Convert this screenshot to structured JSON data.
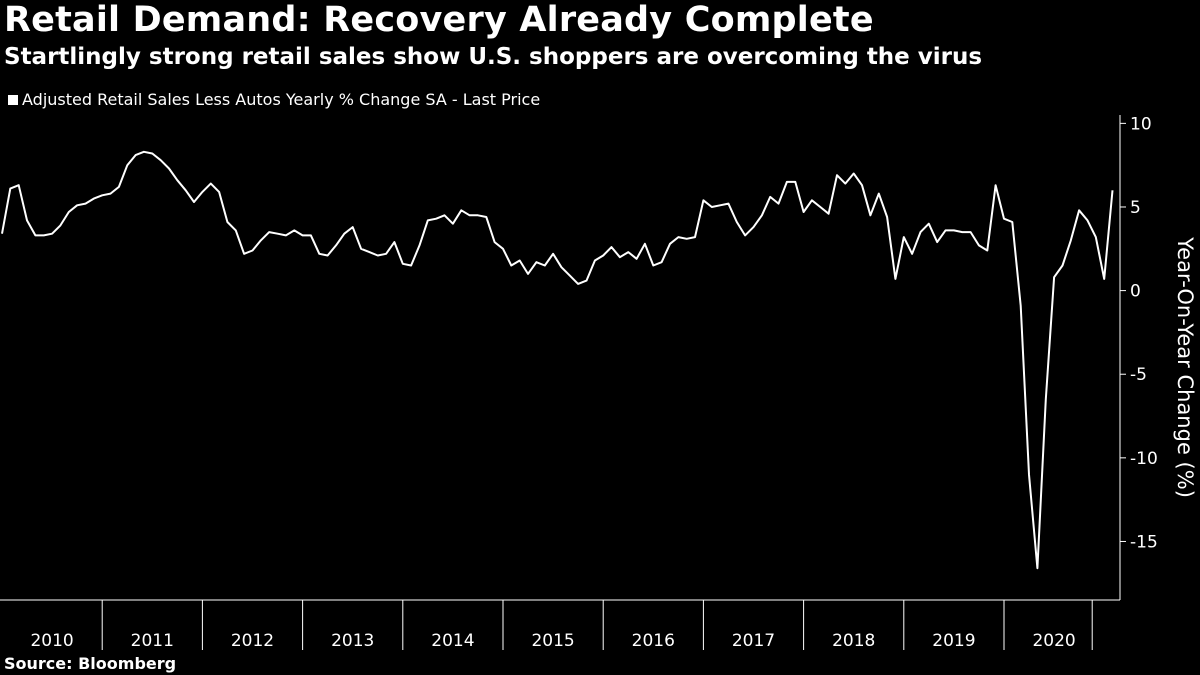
{
  "header": {
    "title": "Retail Demand: Recovery Already Complete",
    "subtitle": "Startlingly strong retail sales show U.S. shoppers are overcoming the virus"
  },
  "source": "Source: Bloomberg",
  "colors": {
    "background": "#000000",
    "line": "#ffffff",
    "text": "#ffffff"
  },
  "chart_data": {
    "type": "line",
    "title": "Retail Demand: Recovery Already Complete",
    "subtitle": "Startlingly strong retail sales show U.S. shoppers are overcoming the virus",
    "legend_position": "top-left",
    "grid": false,
    "ylabel": "Year-On-Year Change (%)",
    "xlabel": "",
    "ylim": [
      -18.5,
      10.5
    ],
    "yticks": [
      10,
      5,
      0,
      -5,
      -10,
      -15
    ],
    "x_tick_labels": [
      "2010",
      "2011",
      "2012",
      "2013",
      "2014",
      "2015",
      "2016",
      "2017",
      "2018",
      "2019",
      "2020"
    ],
    "x_start": "2010-01",
    "x_frequency": "monthly",
    "series": [
      {
        "name": "Adjusted Retail Sales Less Autos Yearly % Change SA - Last Price",
        "values": [
          3.4,
          6.1,
          6.3,
          4.2,
          3.3,
          3.3,
          3.4,
          3.9,
          4.7,
          5.1,
          5.2,
          5.5,
          5.7,
          5.8,
          6.2,
          7.5,
          8.1,
          8.3,
          8.2,
          7.8,
          7.3,
          6.6,
          6.0,
          5.3,
          5.9,
          6.4,
          5.9,
          4.1,
          3.6,
          2.2,
          2.4,
          3.0,
          3.5,
          3.4,
          3.3,
          3.6,
          3.3,
          3.3,
          2.2,
          2.1,
          2.7,
          3.4,
          3.8,
          2.5,
          2.3,
          2.1,
          2.2,
          2.9,
          1.6,
          1.5,
          2.7,
          4.2,
          4.3,
          4.5,
          4.0,
          4.8,
          4.5,
          4.5,
          4.4,
          2.9,
          2.5,
          1.5,
          1.8,
          1.0,
          1.7,
          1.5,
          2.2,
          1.4,
          0.9,
          0.4,
          0.6,
          1.8,
          2.1,
          2.6,
          2.0,
          2.3,
          1.9,
          2.8,
          1.5,
          1.7,
          2.8,
          3.2,
          3.1,
          3.2,
          5.4,
          5.0,
          5.1,
          5.2,
          4.1,
          3.3,
          3.8,
          4.5,
          5.6,
          5.2,
          6.5,
          6.5,
          4.7,
          5.4,
          5.0,
          4.6,
          6.9,
          6.4,
          7.0,
          6.3,
          4.5,
          5.8,
          4.4,
          0.7,
          3.2,
          2.2,
          3.5,
          4.0,
          2.9,
          3.6,
          3.6,
          3.5,
          3.5,
          2.7,
          2.4,
          6.3,
          4.3,
          4.1,
          -0.9,
          -11.0,
          -16.6,
          -6.5,
          0.8,
          1.5,
          3.0,
          4.8,
          4.2,
          3.2,
          0.7,
          6.0
        ]
      }
    ]
  }
}
